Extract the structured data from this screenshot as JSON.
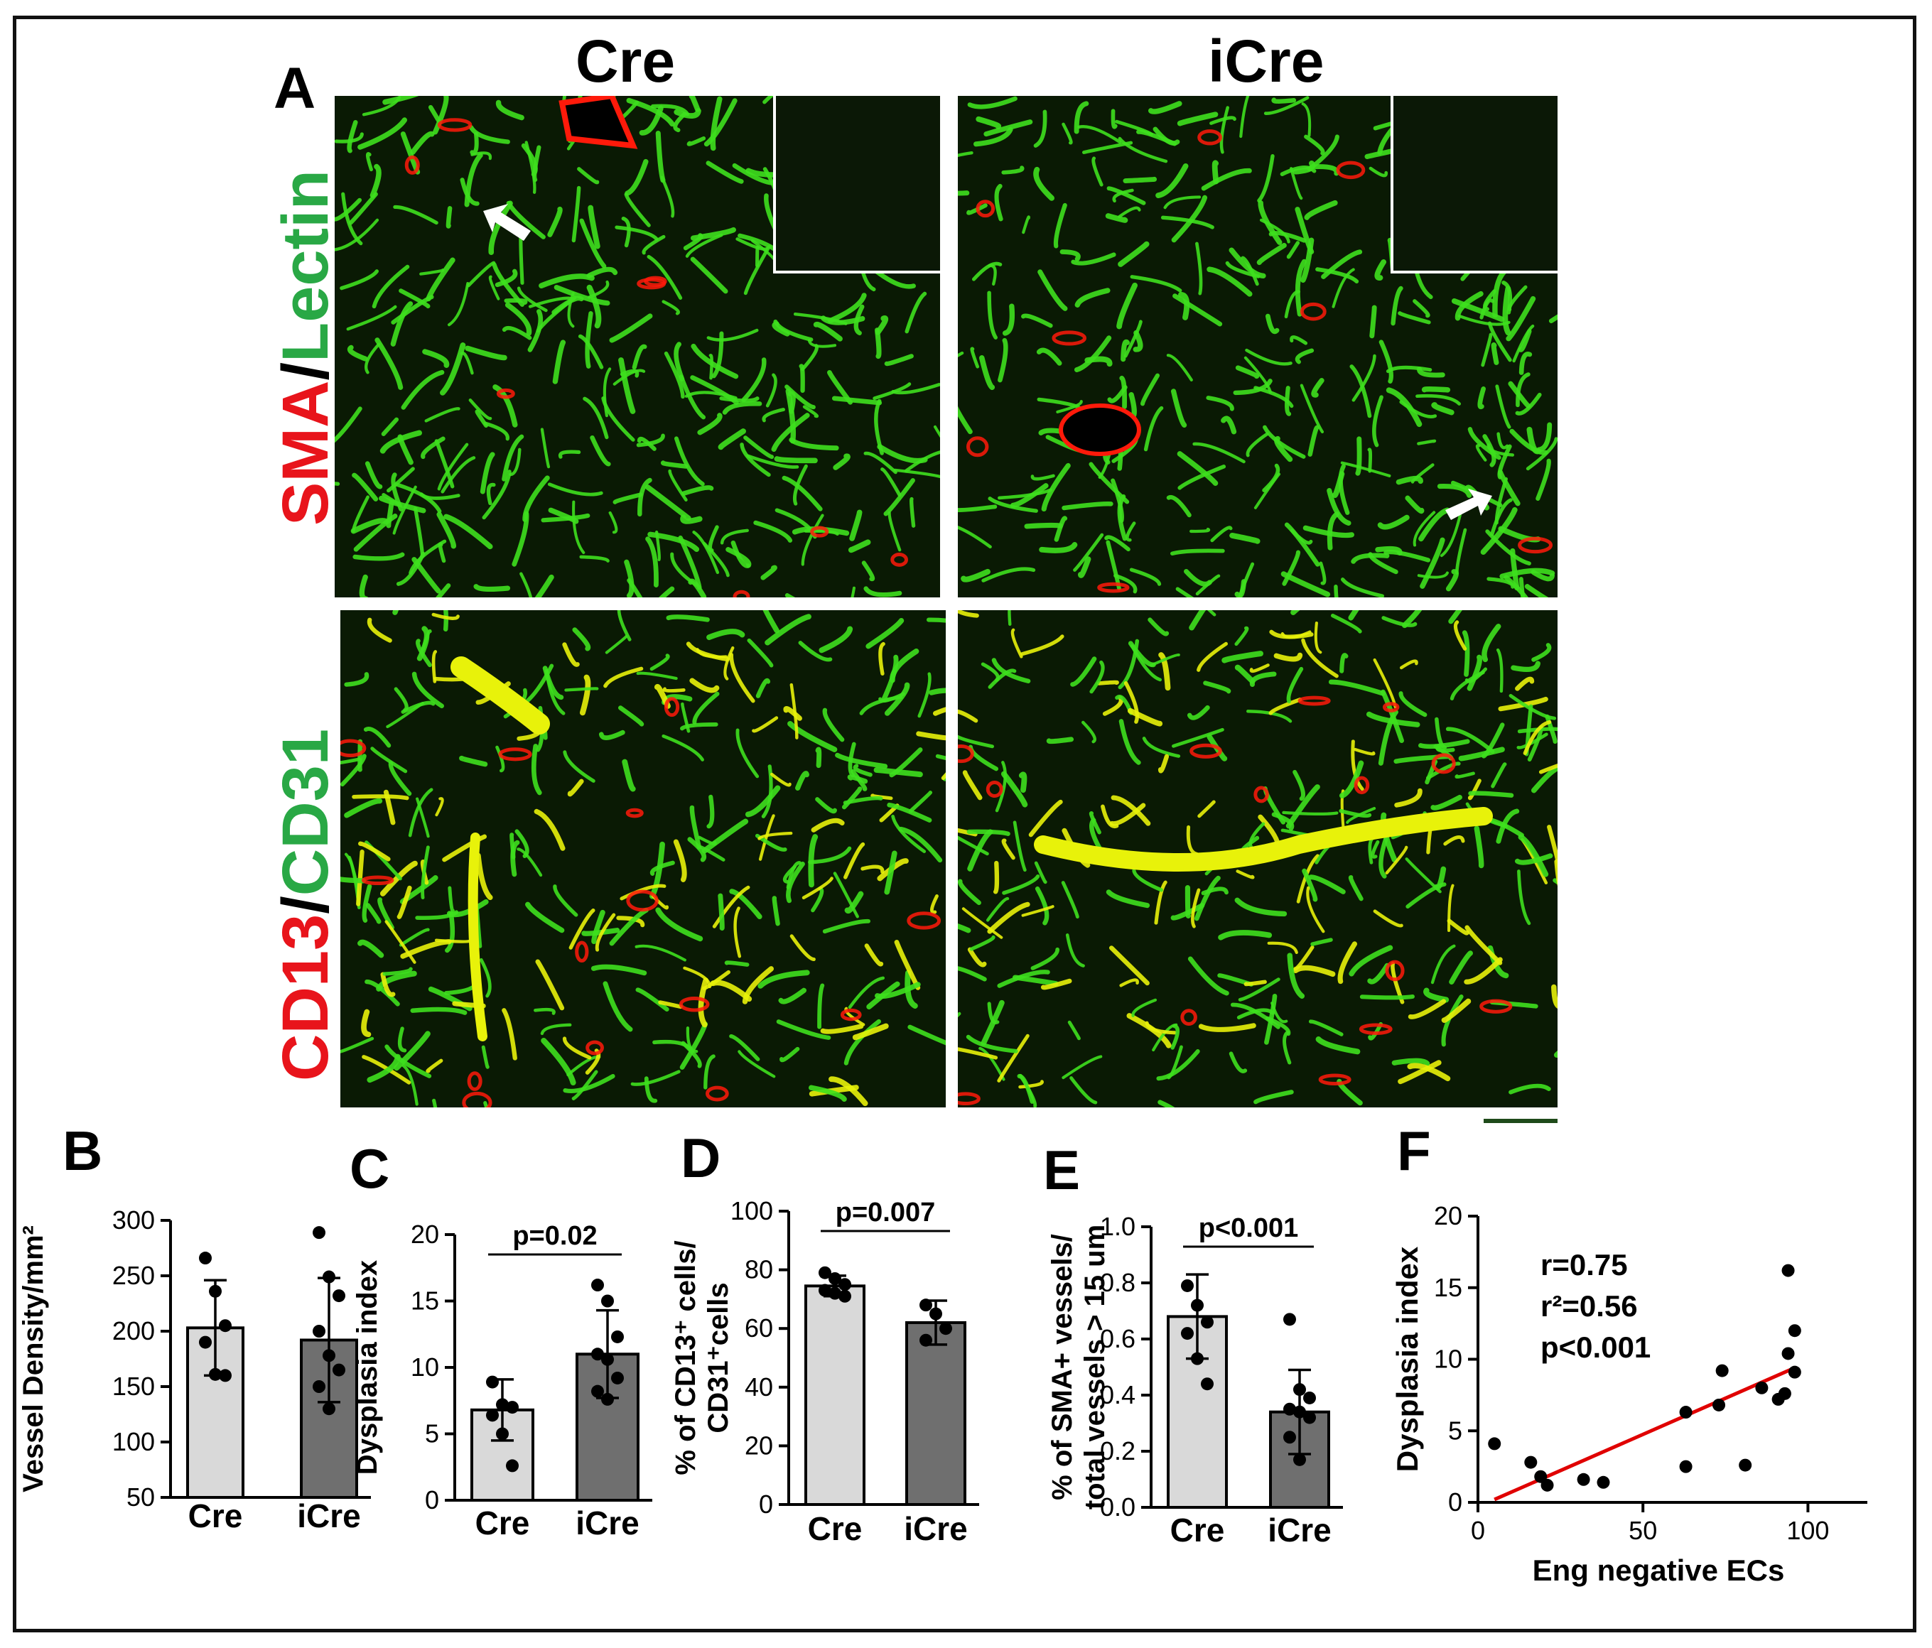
{
  "panel_A": {
    "letter": "A",
    "col_titles": [
      "Cre",
      "iCre"
    ],
    "row1_stain": {
      "red": "SMA",
      "sep": "/",
      "green": "Lectin"
    },
    "row2_stain": {
      "red": "CD13",
      "sep": "/",
      "green": "CD31"
    },
    "colors": {
      "red": "#e8141b",
      "green": "#29a845",
      "tissue": "#0a1a04",
      "vessel": "#3ee01e",
      "red_stain": "#ff1a0a",
      "yellow": "#e8f20a"
    }
  },
  "chart_data": [
    {
      "id": "B",
      "letter": "B",
      "type": "bar",
      "categories": [
        "Cre",
        "iCre"
      ],
      "values": [
        203,
        192
      ],
      "sd": [
        43,
        56
      ],
      "points": [
        [
          266,
          236,
          205,
          190,
          161,
          160
        ],
        [
          289,
          249,
          232,
          200,
          178,
          165,
          150,
          130
        ]
      ],
      "ylabel": "Vessel Density/mm²",
      "ylim": [
        50,
        300
      ],
      "yticks": [
        50,
        100,
        150,
        200,
        250,
        300
      ],
      "bar_colors": [
        "#d9d9d9",
        "#6f6f6f"
      ]
    },
    {
      "id": "C",
      "letter": "C",
      "type": "bar",
      "categories": [
        "Cre",
        "iCre"
      ],
      "values": [
        6.8,
        11.0
      ],
      "sd": [
        2.3,
        3.3
      ],
      "points": [
        [
          8.9,
          7.2,
          7.0,
          6.4,
          5.0,
          2.6
        ],
        [
          16.2,
          15.0,
          12.3,
          11.0,
          10.6,
          9.2,
          8.2,
          7.6
        ]
      ],
      "ylabel": "Dysplasia index",
      "ylim": [
        0,
        20
      ],
      "yticks": [
        0,
        5,
        10,
        15,
        20
      ],
      "pvalue": "p=0.02",
      "bar_colors": [
        "#d9d9d9",
        "#6f6f6f"
      ]
    },
    {
      "id": "D",
      "letter": "D",
      "type": "bar",
      "categories": [
        "Cre",
        "iCre"
      ],
      "values": [
        74.5,
        62
      ],
      "sd": [
        3.5,
        7.5
      ],
      "points": [
        [
          79,
          77,
          75,
          73,
          72,
          71
        ],
        [
          68,
          65,
          60,
          56
        ]
      ],
      "ylabel": "% of CD13⁺ cells/ CD31⁺cells",
      "ylim": [
        0,
        100
      ],
      "yticks": [
        0,
        20,
        40,
        60,
        80,
        100
      ],
      "pvalue": "p=0.007",
      "bar_colors": [
        "#d9d9d9",
        "#6f6f6f"
      ]
    },
    {
      "id": "E",
      "letter": "E",
      "type": "bar",
      "categories": [
        "Cre",
        "iCre"
      ],
      "values": [
        0.68,
        0.34
      ],
      "sd": [
        0.15,
        0.15
      ],
      "points": [
        [
          0.79,
          0.72,
          0.66,
          0.62,
          0.53,
          0.44
        ],
        [
          0.67,
          0.42,
          0.39,
          0.35,
          0.34,
          0.32,
          0.25,
          0.17
        ]
      ],
      "ylabel": "% of SMA+ vessels/ total vessels > 15 um",
      "ylim": [
        0,
        1.0
      ],
      "yticks": [
        0.0,
        0.2,
        0.4,
        0.6,
        0.8,
        1.0
      ],
      "pvalue": "p<0.001",
      "bar_colors": [
        "#d9d9d9",
        "#6f6f6f"
      ]
    },
    {
      "id": "F",
      "letter": "F",
      "type": "scatter",
      "x": [
        5,
        16,
        19,
        21,
        32,
        38,
        63,
        63,
        73,
        74,
        81,
        86,
        91,
        93,
        94,
        94,
        96,
        96
      ],
      "y": [
        4.1,
        2.8,
        1.8,
        1.2,
        1.6,
        1.4,
        2.5,
        6.3,
        6.8,
        9.2,
        2.6,
        8.0,
        7.2,
        7.6,
        10.4,
        16.2,
        9.1,
        12.0
      ],
      "fit": {
        "x": [
          5,
          96
        ],
        "y": [
          0.2,
          9.4
        ],
        "color": "#e00000"
      },
      "xlabel": "Eng negative ECs",
      "ylabel": "Dysplasia index",
      "xlim": [
        0,
        118
      ],
      "ylim": [
        0,
        20
      ],
      "xticks": [
        0,
        50,
        100
      ],
      "yticks": [
        0,
        5,
        10,
        15,
        20
      ],
      "stats": [
        "r=0.75",
        "r²=0.56",
        "p<0.001"
      ]
    }
  ]
}
